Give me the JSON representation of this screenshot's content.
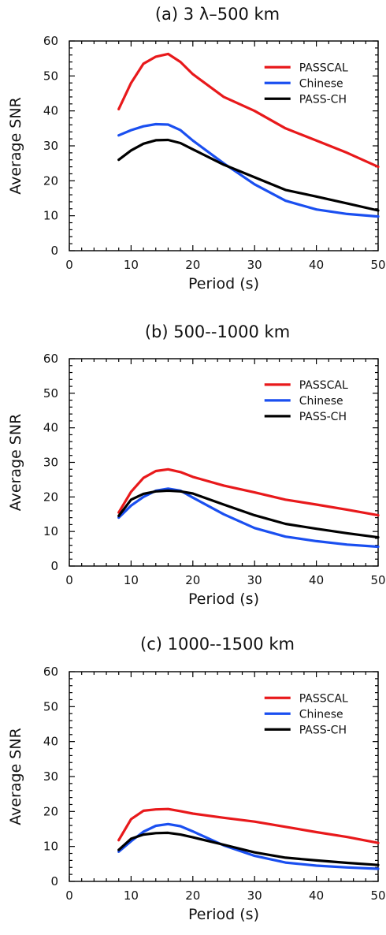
{
  "chart_data": [
    {
      "type": "line",
      "title": "(a) 3 λ–500 km",
      "xlabel": "Period (s)",
      "ylabel": "Average SNR",
      "xlim": [
        0,
        50
      ],
      "ylim": [
        0,
        60
      ],
      "xticks": [
        0,
        10,
        20,
        30,
        40,
        50
      ],
      "yticks": [
        0,
        10,
        20,
        30,
        40,
        50,
        60
      ],
      "legend_position": "top-right",
      "series": [
        {
          "name": "PASSCAL",
          "color": "#e8191b",
          "x": [
            8,
            10,
            12,
            14,
            16,
            18,
            20,
            25,
            30,
            35,
            40,
            45,
            50
          ],
          "y": [
            40.5,
            48,
            53.5,
            55.5,
            56.3,
            54,
            50.5,
            44,
            40,
            35,
            31.5,
            28,
            24
          ]
        },
        {
          "name": "Chinese",
          "color": "#1a4ff0",
          "x": [
            8,
            10,
            12,
            14,
            16,
            18,
            20,
            25,
            30,
            35,
            40,
            45,
            50
          ],
          "y": [
            33,
            34.5,
            35.6,
            36.2,
            36.1,
            34.5,
            31.5,
            25,
            19,
            14.3,
            11.8,
            10.5,
            9.8
          ]
        },
        {
          "name": "PASS-CH",
          "color": "#000000",
          "x": [
            8,
            10,
            12,
            14,
            16,
            18,
            20,
            25,
            30,
            35,
            40,
            45,
            50
          ],
          "y": [
            26,
            28.7,
            30.6,
            31.6,
            31.7,
            30.8,
            29,
            24.6,
            21,
            17.4,
            15.5,
            13.5,
            11.5
          ]
        }
      ]
    },
    {
      "type": "line",
      "title": "(b) 500--1000 km",
      "xlabel": "Period (s)",
      "ylabel": "Average SNR",
      "xlim": [
        0,
        50
      ],
      "ylim": [
        0,
        60
      ],
      "xticks": [
        0,
        10,
        20,
        30,
        40,
        50
      ],
      "yticks": [
        0,
        10,
        20,
        30,
        40,
        50,
        60
      ],
      "legend_position": "top-right",
      "series": [
        {
          "name": "PASSCAL",
          "color": "#e8191b",
          "x": [
            8,
            10,
            12,
            14,
            16,
            18,
            20,
            25,
            30,
            35,
            40,
            45,
            50
          ],
          "y": [
            15.5,
            21.5,
            25.5,
            27.5,
            28,
            27.2,
            25.8,
            23.3,
            21.3,
            19.2,
            17.8,
            16.3,
            14.7
          ]
        },
        {
          "name": "Chinese",
          "color": "#1a4ff0",
          "x": [
            8,
            10,
            12,
            14,
            16,
            18,
            20,
            25,
            30,
            35,
            40,
            45,
            50
          ],
          "y": [
            14,
            17.5,
            20,
            21.8,
            22.4,
            21.8,
            19.8,
            15,
            11,
            8.5,
            7.2,
            6.2,
            5.6
          ]
        },
        {
          "name": "PASS-CH",
          "color": "#000000",
          "x": [
            8,
            10,
            12,
            14,
            16,
            18,
            20,
            25,
            30,
            35,
            40,
            45,
            50
          ],
          "y": [
            14.5,
            19.2,
            20.9,
            21.6,
            21.8,
            21.6,
            21,
            17.8,
            14.7,
            12.2,
            10.8,
            9.5,
            8.3
          ]
        }
      ]
    },
    {
      "type": "line",
      "title": "(c) 1000--1500 km",
      "xlabel": "Period (s)",
      "ylabel": "Average SNR",
      "xlim": [
        0,
        50
      ],
      "ylim": [
        0,
        60
      ],
      "xticks": [
        0,
        10,
        20,
        30,
        40,
        50
      ],
      "yticks": [
        0,
        10,
        20,
        30,
        40,
        50,
        60
      ],
      "legend_position": "top-right",
      "series": [
        {
          "name": "PASSCAL",
          "color": "#e8191b",
          "x": [
            8,
            10,
            12,
            14,
            16,
            18,
            20,
            25,
            30,
            35,
            40,
            45,
            50
          ],
          "y": [
            11.8,
            17.8,
            20.2,
            20.6,
            20.7,
            20.1,
            19.4,
            18.2,
            17.1,
            15.6,
            14.1,
            12.7,
            11
          ]
        },
        {
          "name": "Chinese",
          "color": "#1a4ff0",
          "x": [
            8,
            10,
            12,
            14,
            16,
            18,
            20,
            25,
            30,
            35,
            40,
            45,
            50
          ],
          "y": [
            8.5,
            11.5,
            14.2,
            15.9,
            16.4,
            15.8,
            14.3,
            10.3,
            7.3,
            5.4,
            4.5,
            4,
            3.6
          ]
        },
        {
          "name": "PASS-CH",
          "color": "#000000",
          "x": [
            8,
            10,
            12,
            14,
            16,
            18,
            20,
            25,
            30,
            35,
            40,
            45,
            50
          ],
          "y": [
            9,
            12.2,
            13.4,
            13.8,
            13.9,
            13.4,
            12.6,
            10.5,
            8.3,
            6.8,
            6,
            5.3,
            4.7
          ]
        }
      ]
    }
  ]
}
